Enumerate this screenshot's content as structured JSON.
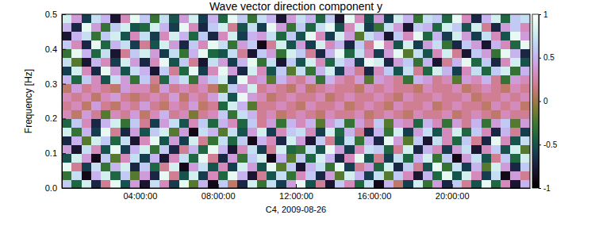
{
  "chart_data": {
    "type": "heatmap",
    "title": "Wave vector direction component y",
    "x_label": "C4, 2009-08-26",
    "y_label": "Frequency [Hz]",
    "xlim": [
      0,
      24
    ],
    "xticks": [
      {
        "value": 4,
        "label": "04:00:00"
      },
      {
        "value": 8,
        "label": "08:00:00"
      },
      {
        "value": 12,
        "label": "12:00:00"
      },
      {
        "value": 16,
        "label": "16:00:00"
      },
      {
        "value": 20,
        "label": "20:00:00"
      }
    ],
    "ylim": [
      0,
      0.5
    ],
    "yticks": [
      {
        "value": 0,
        "label": "0.0"
      },
      0.1,
      0.2,
      0.3,
      0.4,
      0.5
    ],
    "colorbar_range": [
      -1,
      1
    ],
    "colorbar_ticks": [
      -1,
      -0.5,
      0,
      0.5,
      1
    ],
    "x_edges": [
      0,
      0.5,
      1,
      1.5,
      2,
      2.5,
      3,
      3.5,
      4,
      4.5,
      5,
      5.5,
      6,
      6.5,
      7,
      7.5,
      8,
      8.5,
      9,
      9.5,
      10,
      10.5,
      11,
      11.5,
      12,
      12.5,
      13,
      13.5,
      14,
      14.5,
      15,
      15.5,
      16,
      16.5,
      17,
      17.5,
      18,
      18.5,
      19,
      19.5,
      20,
      20.5,
      21,
      21.5,
      22,
      22.5,
      23,
      23.5,
      24
    ],
    "y_edges": [
      0,
      0.025,
      0.05,
      0.075,
      0.1,
      0.125,
      0.15,
      0.175,
      0.2,
      0.225,
      0.25,
      0.275,
      0.3,
      0.325,
      0.35,
      0.375,
      0.4,
      0.425,
      0.45,
      0.475,
      0.5
    ],
    "cells": [
      [
        0.6,
        -0.4,
        0.8,
        -0.7,
        0.2,
        0.9,
        -0.5,
        0.4,
        -0.8,
        0.7,
        0.3,
        -0.6,
        0.9,
        -0.2,
        0.5,
        -0.9,
        0.6,
        0.1,
        -0.7,
        0.8,
        -0.3,
        0.7,
        -0.6,
        0.4,
        0.9,
        -0.5,
        0.2,
        -0.8,
        0.6,
        0.3,
        -0.4,
        0.7,
        -0.9,
        0.5,
        0.1,
        -0.6,
        0.8,
        -0.3,
        0.4,
        -0.7,
        0.6,
        0.2,
        -0.5,
        0.9,
        -0.4,
        0.3,
        -0.8,
        0.5
      ],
      [
        -0.3,
        0.7,
        -0.9,
        0.5,
        0.8,
        -0.4,
        0.6,
        -0.2,
        0.4,
        -0.7,
        0.9,
        0.2,
        -0.5,
        0.8,
        -0.6,
        0.3,
        -0.4,
        0.9,
        0.5,
        -0.8,
        0.2,
        -0.5,
        0.7,
        -0.3,
        0.3,
        0.6,
        -0.7,
        0.4,
        -0.2,
        0.8,
        0.5,
        -0.6,
        0.7,
        -0.2,
        0.6,
        0.3,
        -0.8,
        0.5,
        -0.4,
        0.9,
        -0.5,
        0.8,
        0.3,
        -0.6,
        0.7,
        -0.9,
        0.4,
        0.2
      ],
      [
        0.9,
        0.2,
        -0.6,
        0.7,
        -0.3,
        0.5,
        0.8,
        -0.7,
        0.6,
        -0.4,
        0.2,
        0.8,
        -0.9,
        0.4,
        0.7,
        -0.5,
        0.3,
        -0.6,
        0.8,
        0.4,
        -0.5,
        0.9,
        -0.2,
        0.6,
        -0.8,
        0.5,
        0.7,
        -0.3,
        0.9,
        -0.6,
        0.2,
        0.4,
        -0.4,
        0.8,
        -0.7,
        0.6,
        0.2,
        -0.5,
        0.9,
        -0.3,
        0.7,
        -0.6,
        0.5,
        -0.2,
        0.8,
        0.4,
        -0.7,
        0.6
      ],
      [
        -0.5,
        0.8,
        0.4,
        -0.9,
        0.6,
        -0.2,
        0.3,
        0.7,
        -0.6,
        0.5,
        -0.8,
        0.3,
        0.7,
        -0.4,
        0.9,
        0.2,
        -0.7,
        0.4,
        -0.3,
        0.6,
        0.8,
        -0.9,
        0.5,
        -0.2,
        0.6,
        -0.4,
        0.8,
        0.5,
        -0.7,
        0.3,
        0.9,
        -0.5,
        0.2,
        -0.6,
        0.7,
        -0.4,
        0.5,
        0.8,
        -0.3,
        0.6,
        -0.9,
        0.4,
        0.7,
        -0.5,
        0.2,
        0.6,
        -0.4,
        0.8
      ],
      [
        0.4,
        -0.8,
        0.7,
        0.3,
        -0.5,
        0.9,
        -0.6,
        0.5,
        0.8,
        -0.3,
        0.6,
        -0.7,
        0.2,
        0.5,
        -0.4,
        0.9,
        0.5,
        -0.8,
        0.3,
        0.7,
        -0.6,
        0.2,
        0.8,
        -0.4,
        -0.3,
        0.7,
        -0.5,
        0.9,
        0.4,
        -0.6,
        0.3,
        0.7,
        0.6,
        -0.4,
        0.2,
        0.8,
        -0.7,
        0.5,
        0.3,
        -0.6,
        0.4,
        0.7,
        -0.8,
        0.3,
        0.6,
        -0.5,
        0.8,
        -0.2
      ],
      [
        -0.7,
        0.5,
        -0.2,
        0.8,
        0.6,
        -0.4,
        0.7,
        -0.8,
        0.3,
        0.9,
        -0.5,
        0.4,
        -0.6,
        0.8,
        0.2,
        -0.3,
        0.7,
        -0.4,
        0.6,
        -0.9,
        0.5,
        0.3,
        -0.7,
        0.8,
        0.4,
        -0.8,
        0.6,
        0.2,
        -0.5,
        0.7,
        -0.3,
        0.5,
        -0.7,
        0.9,
        0.4,
        -0.2,
        0.6,
        -0.8,
        0.7,
        0.3,
        -0.4,
        0.6,
        0.2,
        -0.7,
        0.9,
        0.3,
        -0.5,
        0.7
      ],
      [
        0.8,
        -0.3,
        0.5,
        -0.6,
        0.9,
        0.2,
        -0.7,
        0.4,
        -0.5,
        0.6,
        0.8,
        -0.2,
        0.4,
        -0.9,
        0.7,
        0.5,
        -0.2,
        0.7,
        -0.5,
        0.4,
        0.8,
        -0.6,
        0.3,
        0.6,
        0.7,
        0.3,
        -0.6,
        0.8,
        -0.4,
        0.5,
        0.2,
        -0.7,
        0.5,
        -0.3,
        0.8,
        -0.6,
        0.4,
        0.7,
        -0.5,
        0.3,
        0.8,
        -0.4,
        0.6,
        0.3,
        -0.7,
        0.5,
        0.2,
        -0.6
      ],
      [
        -0.4,
        0.6,
        0.3,
        -0.7,
        0.5,
        0.8,
        -0.3,
        0.6,
        0.2,
        -0.6,
        0.4,
        0.7,
        -0.5,
        0.3,
        0.6,
        -0.4,
        0.5,
        0.3,
        -0.4,
        0.6,
        0.2,
        0.4,
        -0.3,
        0.5,
        0.3,
        0.5,
        -0.2,
        0.4,
        0.6,
        -0.3,
        0.4,
        0.2,
        0.6,
        -0.2,
        0.4,
        0.3,
        -0.4,
        0.5,
        0.3,
        -0.3,
        0.4,
        0.2,
        0.5,
        -0.3,
        0.4,
        0.6,
        -0.2,
        0.4
      ],
      [
        0.3,
        0.1,
        0.4,
        0.2,
        -0.2,
        0.3,
        0.2,
        0.4,
        0.1,
        0.3,
        0.5,
        0.2,
        0.3,
        -0.1,
        0.2,
        0.3,
        0.6,
        -0.3,
        0.7,
        0.5,
        0.2,
        0.3,
        0.1,
        0.2,
        0.3,
        0.2,
        0.1,
        0.3,
        0.2,
        0.2,
        0.3,
        0.1,
        0.2,
        0.3,
        0.2,
        0.1,
        0.3,
        0.2,
        0.2,
        0.3,
        0.1,
        0.2,
        0.3,
        0.2,
        0.1,
        0.3,
        0.2,
        0.2
      ],
      [
        0.2,
        0.3,
        0.1,
        0.4,
        0.2,
        0.1,
        0.3,
        0.2,
        0.4,
        0.2,
        0.1,
        0.3,
        0.2,
        0.4,
        0.1,
        0.2,
        -0.4,
        0.8,
        0.5,
        -0.2,
        0.2,
        0.2,
        0.3,
        0.2,
        0.1,
        0.3,
        0.2,
        0.2,
        0.3,
        0.1,
        0.2,
        0.3,
        0.2,
        0.1,
        0.3,
        0.2,
        0.2,
        0.3,
        0.1,
        0.2,
        0.3,
        0.2,
        0.2,
        0.1,
        0.3,
        0.2,
        0.3,
        0.1
      ],
      [
        0.3,
        0.2,
        0.3,
        0.1,
        0.3,
        0.4,
        0.2,
        0.1,
        0.2,
        0.3,
        0.2,
        0.4,
        0.1,
        0.3,
        0.2,
        0.4,
        0.7,
        -0.5,
        0.9,
        0.4,
        0.3,
        0.1,
        0.2,
        0.3,
        0.2,
        0.2,
        0.3,
        0.1,
        0.2,
        0.3,
        0.2,
        0.2,
        0.3,
        0.2,
        0.1,
        0.3,
        0.2,
        0.2,
        0.3,
        0.2,
        0.2,
        0.3,
        0.1,
        0.2,
        0.2,
        0.3,
        0.2,
        0.3
      ],
      [
        0.1,
        0.4,
        0.2,
        0.3,
        0.2,
        0.1,
        0.4,
        0.3,
        0.3,
        0.1,
        0.4,
        0.2,
        0.3,
        0.2,
        0.3,
        0.1,
        -0.2,
        0.6,
        0.4,
        0.8,
        0.2,
        0.3,
        0.2,
        0.1,
        0.3,
        0.1,
        0.2,
        0.3,
        0.2,
        0.2,
        0.1,
        0.3,
        0.2,
        0.3,
        0.2,
        0.2,
        0.1,
        0.3,
        0.2,
        0.2,
        0.3,
        0.1,
        0.2,
        0.3,
        0.2,
        0.1,
        0.3,
        0.2
      ],
      [
        0.5,
        -0.4,
        0.6,
        0.3,
        -0.5,
        0.7,
        0.4,
        -0.3,
        0.6,
        0.2,
        -0.4,
        0.5,
        0.7,
        -0.3,
        0.4,
        0.6,
        0.8,
        -0.6,
        0.9,
        0.3,
        0.4,
        -0.2,
        0.5,
        0.3,
        0.2,
        0.4,
        -0.3,
        0.5,
        0.3,
        0.2,
        0.4,
        -0.2,
        0.4,
        0.3,
        0.2,
        -0.3,
        0.5,
        0.4,
        0.2,
        0.3,
        -0.2,
        0.4,
        0.3,
        0.5,
        0.2,
        -0.3,
        0.4,
        0.3
      ],
      [
        -0.6,
        0.8,
        0.3,
        -0.7,
        0.9,
        0.4,
        -0.5,
        0.7,
        0.5,
        -0.8,
        0.6,
        0.2,
        -0.4,
        0.9,
        -0.6,
        0.3,
        0.9,
        0.4,
        -0.7,
        0.8,
        0.3,
        -0.5,
        0.6,
        -0.2,
        0.7,
        -0.3,
        0.5,
        0.8,
        -0.6,
        0.4,
        0.2,
        -0.7,
        0.3,
        0.6,
        -0.5,
        0.7,
        0.2,
        -0.4,
        0.8,
        0.5,
        -0.6,
        0.3,
        0.7,
        -0.4,
        0.6,
        0.8,
        -0.3,
        0.5
      ],
      [
        0.7,
        -0.2,
        -0.8,
        0.5,
        0.3,
        -0.6,
        0.8,
        0.4,
        -0.7,
        0.3,
        0.9,
        -0.5,
        0.6,
        0.2,
        -0.8,
        0.7,
        0.4,
        -0.6,
        0.5,
        0.9,
        -0.3,
        0.7,
        -0.8,
        0.6,
        -0.5,
        0.8,
        0.3,
        -0.4,
        0.7,
        0.5,
        -0.6,
        0.9,
        0.8,
        -0.7,
        0.4,
        0.6,
        -0.3,
        0.5,
        -0.8,
        0.2,
        0.5,
        0.9,
        -0.4,
        0.6,
        -0.7,
        0.3,
        0.8,
        -0.5
      ],
      [
        -0.3,
        0.9,
        0.5,
        -0.4,
        0.7,
        -0.8,
        0.2,
        0.6,
        0.8,
        0.4,
        -0.6,
        0.7,
        -0.3,
        0.5,
        0.9,
        -0.4,
        -0.5,
        0.7,
        0.2,
        -0.8,
        0.6,
        0.4,
        -0.3,
        0.8,
        0.6,
        0.2,
        -0.7,
        0.5,
        0.9,
        -0.4,
        0.7,
        0.3,
        -0.6,
        0.4,
        0.9,
        -0.2,
        0.7,
        -0.5,
        0.3,
        0.8,
        0.2,
        -0.8,
        0.6,
        0.4,
        -0.3,
        0.9,
        0.5,
        -0.7
      ],
      [
        0.6,
        0.3,
        -0.7,
        0.9,
        -0.4,
        0.5,
        0.7,
        -0.6,
        0.2,
        -0.5,
        0.8,
        0.4,
        -0.7,
        0.6,
        0.3,
        0.9,
        0.7,
        -0.3,
        0.4,
        0.6,
        -0.9,
        0.2,
        0.8,
        -0.5,
        0.4,
        -0.6,
        0.8,
        0.3,
        0.5,
        -0.7,
        0.6,
        0.2,
        0.9,
        0.3,
        -0.5,
        0.8,
        -0.6,
        0.4,
        0.7,
        -0.3,
        -0.7,
        0.6,
        0.4,
        -0.8,
        0.5,
        0.3,
        -0.4,
        0.9
      ],
      [
        -0.8,
        0.5,
        0.7,
        -0.3,
        0.6,
        0.8,
        -0.5,
        0.3,
        0.7,
        -0.6,
        0.3,
        0.8,
        0.5,
        -0.4,
        0.6,
        -0.7,
        0.3,
        0.8,
        -0.6,
        0.5,
        0.4,
        0.7,
        -0.4,
        0.6,
        -0.5,
        0.9,
        0.3,
        -0.6,
        0.8,
        0.4,
        -0.2,
        0.7,
        0.5,
        -0.8,
        0.6,
        0.3,
        0.9,
        -0.4,
        0.5,
        -0.6,
        0.8,
        0.4,
        -0.6,
        0.7,
        0.3,
        -0.5,
        0.9,
        0.4
      ],
      [
        0.5,
        -0.7,
        0.9,
        0.4,
        -0.3,
        0.6,
        0.8,
        -0.5,
        -0.4,
        0.8,
        0.5,
        -0.6,
        0.9,
        0.3,
        -0.7,
        0.6,
        0.8,
        0.2,
        -0.5,
        0.7,
        -0.6,
        0.9,
        0.4,
        -0.3,
        0.6,
        -0.4,
        0.7,
        0.9,
        -0.5,
        0.3,
        0.8,
        -0.6,
        -0.3,
        0.7,
        0.4,
        -0.8,
        0.6,
        0.5,
        -0.4,
        0.8,
        0.6,
        -0.5,
        0.8,
        0.2,
        -0.7,
        0.4,
        0.6,
        0.3
      ],
      [
        0.8,
        0.4,
        -0.6,
        0.7,
        0.5,
        -0.8,
        0.3,
        0.9,
        0.6,
        -0.3,
        0.7,
        -0.5,
        0.4,
        0.8,
        -0.6,
        0.5,
        -0.4,
        0.9,
        0.6,
        -0.3,
        0.7,
        0.5,
        -0.8,
        0.4,
        0.7,
        0.5,
        -0.4,
        0.6,
        -0.8,
        0.9,
        0.3,
        -0.5,
        0.4,
        -0.6,
        0.8,
        0.5,
        -0.3,
        0.7,
        0.6,
        -0.4,
        0.9,
        0.3,
        -0.7,
        0.5,
        0.8,
        -0.4,
        0.6,
        0.7
      ]
    ]
  }
}
